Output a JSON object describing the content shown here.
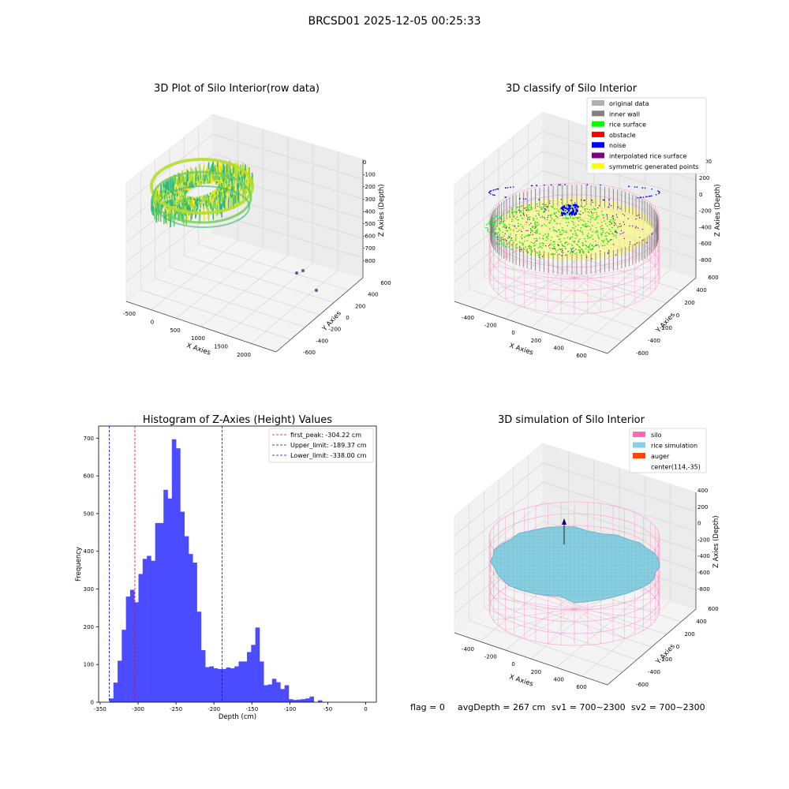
{
  "figure": {
    "suptitle": "BRCSD01 2025-12-05 00:25:33",
    "footer": {
      "flag": "flag = 0",
      "avg_depth": "avgDepth = 267 cm",
      "sv1": "sv1 = 700~2300",
      "sv2": "sv2 = 700~2300"
    }
  },
  "panel_raw": {
    "title": "3D Plot of Silo Interior(row data)",
    "xlabel": "X Axies",
    "ylabel": "Y Axies",
    "zlabel": "Z Axies (Depth)",
    "x_ticks": [
      "-500",
      "0",
      "500",
      "1000",
      "1500",
      "2000"
    ],
    "y_ticks": [
      "-600",
      "-400",
      "-200",
      "0",
      "200",
      "400",
      "600"
    ],
    "z_ticks": [
      "0",
      "-100",
      "-200",
      "-300",
      "-400",
      "-500",
      "-600",
      "-700",
      "-800"
    ],
    "colormap": [
      "#fde725",
      "#b5de2b",
      "#6ece58",
      "#35b779",
      "#1f9e89",
      "#440154"
    ]
  },
  "panel_classify": {
    "title": "3D classify of Silo Interior",
    "xlabel": "X Axies",
    "ylabel": "Y Axies",
    "zlabel": "Z Axies (Depth)",
    "x_ticks": [
      "-400",
      "-200",
      "0",
      "200",
      "400",
      "600"
    ],
    "y_ticks": [
      "-600",
      "-400",
      "-200",
      "0",
      "200",
      "400",
      "600"
    ],
    "z_ticks": [
      "200",
      "0",
      "-200",
      "-400",
      "-600",
      "-800"
    ],
    "z_top_partial": "00",
    "legend": [
      {
        "label": "original data",
        "color": "#b0b0b0"
      },
      {
        "label": "inner wall",
        "color": "#808080"
      },
      {
        "label": "rice surface",
        "color": "#00ff00"
      },
      {
        "label": "obstacle",
        "color": "#ff0000"
      },
      {
        "label": "noise",
        "color": "#0000ff"
      },
      {
        "label": "interpolated rice surface",
        "color": "#800080"
      },
      {
        "label": "symmetric generated points",
        "color": "#ffff00"
      }
    ]
  },
  "panel_sim": {
    "title": "3D simulation of Silo Interior",
    "xlabel": "X Axies",
    "ylabel": "Y Axies",
    "zlabel": "Z Axies (Depth)",
    "x_ticks": [
      "-400",
      "-200",
      "0",
      "200",
      "400",
      "600"
    ],
    "y_ticks": [
      "-600",
      "-400",
      "-200",
      "0",
      "200",
      "400",
      "600"
    ],
    "z_ticks": [
      "400",
      "200",
      "0",
      "-200",
      "-400",
      "-600",
      "-800"
    ],
    "legend": [
      {
        "label": "silo",
        "color": "#ff69b4"
      },
      {
        "label": "rice simulation",
        "color": "#87ceeb"
      },
      {
        "label": "auger",
        "color": "#ff4500"
      },
      {
        "label": "center(114,-35)",
        "color": ""
      }
    ]
  },
  "chart_data": {
    "type": "bar",
    "title": "Histogram of Z-Axies (Height) Values",
    "xlabel": "Depth (cm)",
    "ylabel": "Frequency",
    "xlim": [
      -352,
      14
    ],
    "ylim": [
      0,
      732
    ],
    "x_ticks": [
      -350,
      -300,
      -250,
      -200,
      -150,
      -100,
      -50,
      0
    ],
    "y_ticks": [
      0,
      100,
      200,
      300,
      400,
      500,
      600,
      700
    ],
    "bar_color": "#4b4bff",
    "bin_edges_start": -338.0,
    "bin_width": 5.5,
    "values": [
      10,
      52,
      110,
      192,
      280,
      298,
      265,
      340,
      380,
      388,
      375,
      475,
      475,
      563,
      540,
      697,
      673,
      505,
      440,
      393,
      370,
      240,
      138,
      93,
      95,
      90,
      88,
      88,
      92,
      90,
      95,
      108,
      108,
      133,
      152,
      198,
      108,
      45,
      47,
      62,
      53,
      35,
      45,
      8,
      6,
      7,
      8,
      10,
      15,
      0,
      5
    ],
    "vlines": [
      {
        "label": "first_peak: -304.22 cm",
        "x": -304.22,
        "color": "#ff0000"
      },
      {
        "label": "Upper_limit: -189.37 cm",
        "x": -189.37,
        "color": "#0000ff"
      },
      {
        "label": "Lower_limit: -338.00 cm",
        "x": -338.0,
        "color": "#0000ff"
      }
    ],
    "legend_position": "top-right",
    "grid": false
  }
}
